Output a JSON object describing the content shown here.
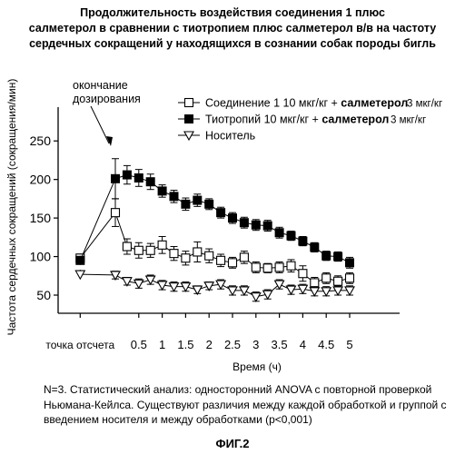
{
  "chart_data": {
    "type": "line",
    "title": [
      "Продолжительность воздействия соединения 1 плюс",
      "салметерол в сравнении с тиотропием плюс салметерол в/в на частоту",
      "сердечных сокращений у находящихся в сознании собак породы бигль"
    ],
    "xlabel": "Время (ч)",
    "ylabel": "Частота сердечных сокращений (сокращения/мин)",
    "x_ticks": [
      "точка отсчета",
      "0.5",
      "1",
      "1.5",
      "2",
      "2.5",
      "3",
      "3.5",
      "4",
      "4.5",
      "5"
    ],
    "y_ticks": [
      50,
      100,
      150,
      200,
      250
    ],
    "ylim": [
      30,
      255
    ],
    "x": [
      0,
      0.25,
      0.5,
      0.75,
      1,
      1.25,
      1.5,
      1.75,
      2,
      2.25,
      2.5,
      2.75,
      3,
      3.25,
      3.5,
      3.75,
      4,
      4.25,
      4.5,
      4.75,
      5
    ],
    "baseline_x": -0.75,
    "annotation": [
      "окончание",
      "дозирования"
    ],
    "legend_position": "top-right",
    "series": [
      {
        "name": "Соединение 1 10 мкг/кг +",
        "name_bold": "салметерол",
        "dose": "3 мкг/кг",
        "marker": "open-square",
        "baseline": 98,
        "values": [
          157,
          113,
          108,
          108,
          115,
          104,
          98,
          106,
          101,
          95,
          92,
          99,
          86,
          85,
          86,
          88,
          78,
          66,
          72,
          68,
          72
        ],
        "errors": [
          18,
          10,
          10,
          9,
          11,
          9,
          9,
          13,
          9,
          8,
          7,
          8,
          7,
          6,
          7,
          8,
          10,
          7,
          7,
          7,
          7
        ]
      },
      {
        "name": "Тиотропий 10 мкг/кг +",
        "name_bold": "салметерол",
        "dose": "3 мкг/кг",
        "marker": "filled-square",
        "baseline": 95,
        "values": [
          201,
          206,
          202,
          197,
          185,
          178,
          168,
          173,
          168,
          157,
          150,
          144,
          141,
          140,
          131,
          127,
          120,
          112,
          101,
          100,
          92
        ],
        "errors": [
          26,
          12,
          11,
          10,
          8,
          8,
          8,
          8,
          7,
          7,
          7,
          7,
          7,
          7,
          7,
          6,
          6,
          6,
          6,
          6,
          7
        ]
      },
      {
        "name": "Носитель",
        "marker": "open-triangle-down",
        "baseline": 77,
        "values": [
          76,
          68,
          65,
          70,
          63,
          61,
          61,
          57,
          62,
          64,
          56,
          56,
          48,
          51,
          64,
          57,
          58,
          55,
          55,
          56,
          56
        ],
        "errors": [
          5,
          5,
          6,
          6,
          6,
          6,
          6,
          5,
          5,
          6,
          6,
          6,
          6,
          6,
          6,
          6,
          6,
          6,
          6,
          6,
          6
        ]
      }
    ]
  },
  "footnote": [
    "N=3. Статистический анализ: односторонний ANOVA с повторной проверкой",
    "Ньюмана-Кейлса. Существуют различия между каждой обработкой и группой с",
    "введением носителя и между обработками (p<0,001)"
  ],
  "figure_label": "ФИГ.2"
}
